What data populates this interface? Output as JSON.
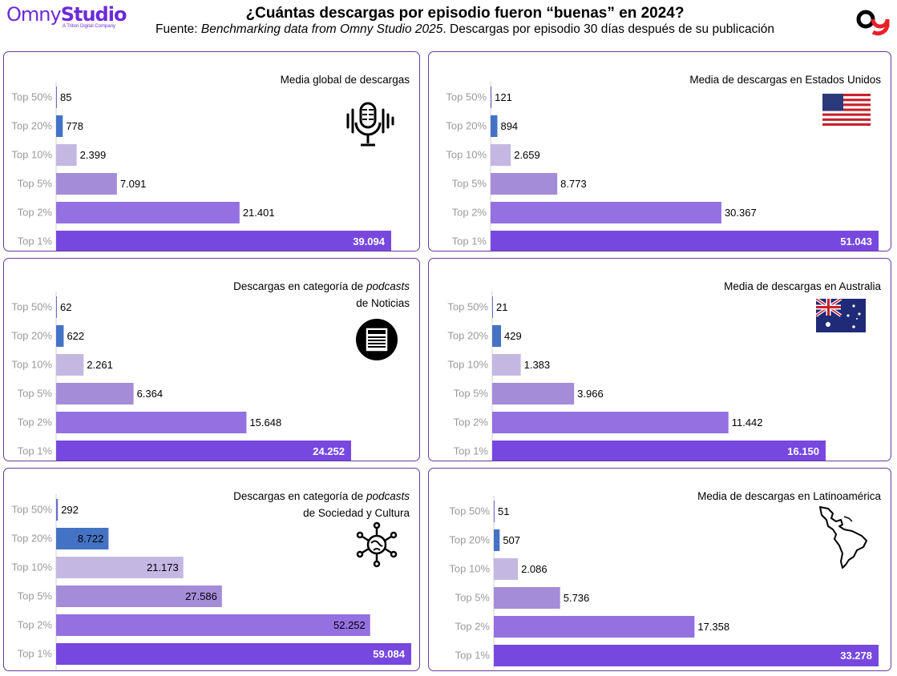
{
  "logo": {
    "brand_a": "Omny",
    "brand_b": "Studio",
    "sub": "A Triton Digital Company"
  },
  "header": {
    "title": "¿Cuántas descargas por episodio fueron “buenas” en 2024?",
    "subtitle_prefix": "Fuente: ",
    "subtitle_italic": "Benchmarking data from Omny Studio 2025",
    "subtitle_suffix": ". Descargas por episodio 30 días después de su publicación"
  },
  "panels": {
    "global": {
      "title_line1": "Media global de descargas",
      "icon": "podcast-microphone-icon"
    },
    "usa": {
      "title_line1": "Media de descargas en Estados Unidos",
      "icon": "us-flag-icon"
    },
    "noticias": {
      "title_pre": "Descargas en categoría de ",
      "title_italic": "podcasts",
      "title_line2": "de Noticias",
      "icon": "news-icon"
    },
    "australia": {
      "title_line1": "Media de descargas en Australia",
      "icon": "australia-flag-icon"
    },
    "sociedad": {
      "title_pre": "Descargas en categoría de ",
      "title_italic": "podcasts",
      "title_line2": "de Sociedad y Cultura",
      "icon": "society-network-icon"
    },
    "latam": {
      "title_line1": "Media de descargas en Latinoamérica",
      "icon": "latin-america-map-icon"
    }
  },
  "chart_data": [
    {
      "id": "global",
      "type": "bar",
      "orientation": "horizontal",
      "title": "Media global de descargas",
      "categories": [
        "Top 50%",
        "Top 20%",
        "Top 10%",
        "Top 5%",
        "Top 2%",
        "Top 1%"
      ],
      "values": [
        85,
        778,
        2399,
        7091,
        21401,
        39094
      ],
      "labels": [
        "85",
        "778",
        "2.399",
        "7.091",
        "21.401",
        "39.094"
      ]
    },
    {
      "id": "usa",
      "type": "bar",
      "orientation": "horizontal",
      "title": "Media de descargas en Estados Unidos",
      "categories": [
        "Top 50%",
        "Top 20%",
        "Top 10%",
        "Top 5%",
        "Top 2%",
        "Top 1%"
      ],
      "values": [
        121,
        894,
        2659,
        8773,
        30367,
        51043
      ],
      "labels": [
        "121",
        "894",
        "2.659",
        "8.773",
        "30.367",
        "51.043"
      ]
    },
    {
      "id": "noticias",
      "type": "bar",
      "orientation": "horizontal",
      "title": "Descargas en categoría de podcasts de Noticias",
      "categories": [
        "Top 50%",
        "Top 20%",
        "Top 10%",
        "Top 5%",
        "Top 2%",
        "Top 1%"
      ],
      "values": [
        62,
        622,
        2261,
        6364,
        15648,
        24252
      ],
      "labels": [
        "62",
        "622",
        "2.261",
        "6.364",
        "15.648",
        "24.252"
      ]
    },
    {
      "id": "australia",
      "type": "bar",
      "orientation": "horizontal",
      "title": "Media de descargas en Australia",
      "categories": [
        "Top 50%",
        "Top 20%",
        "Top 10%",
        "Top 5%",
        "Top 2%",
        "Top 1%"
      ],
      "values": [
        21,
        429,
        1383,
        3966,
        11442,
        16150
      ],
      "labels": [
        "21",
        "429",
        "1.383",
        "3.966",
        "11.442",
        "16.150"
      ]
    },
    {
      "id": "sociedad",
      "type": "bar",
      "orientation": "horizontal",
      "title": "Descargas en categoría de podcasts de Sociedad y Cultura",
      "categories": [
        "Top 50%",
        "Top 20%",
        "Top 10%",
        "Top 5%",
        "Top 2%",
        "Top 1%"
      ],
      "values": [
        292,
        8722,
        21173,
        27586,
        52252,
        59084
      ],
      "labels": [
        "292",
        "8.722",
        "21.173",
        "27.586",
        "52.252",
        "59.084"
      ]
    },
    {
      "id": "latam",
      "type": "bar",
      "orientation": "horizontal",
      "title": "Media de descargas en Latinoamérica",
      "categories": [
        "Top 50%",
        "Top 20%",
        "Top 10%",
        "Top 5%",
        "Top 2%",
        "Top 1%"
      ],
      "values": [
        51,
        507,
        2086,
        5736,
        17358,
        33278
      ],
      "labels": [
        "51",
        "507",
        "2.086",
        "5.736",
        "17.358",
        "33.278"
      ]
    }
  ],
  "colors": {
    "bars": [
      "#6a6ac8",
      "#4472c4",
      "#c4b8e3",
      "#a48cd9",
      "#9470e0",
      "#7748e0"
    ],
    "border": "#6a3a9a",
    "brand": "#6d2ad8",
    "brand_red": "#e8202a"
  }
}
